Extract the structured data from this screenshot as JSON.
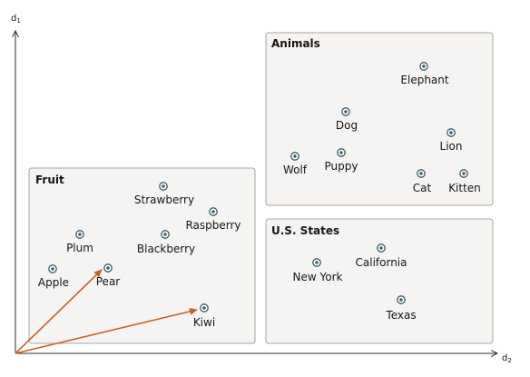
{
  "axes": {
    "y": {
      "name": "d",
      "subscript": "1"
    },
    "x": {
      "name": "d",
      "subscript": "2"
    }
  },
  "groups": [
    {
      "id": "fruit",
      "title": "Fruit",
      "items": [
        "Strawberry",
        "Raspberry",
        "Plum",
        "Blackberry",
        "Apple",
        "Pear",
        "Kiwi"
      ]
    },
    {
      "id": "animals",
      "title": "Animals",
      "items": [
        "Elephant",
        "Dog",
        "Lion",
        "Wolf",
        "Puppy",
        "Cat",
        "Kitten"
      ]
    },
    {
      "id": "states",
      "title": "U.S. States",
      "items": [
        "New York",
        "California",
        "Texas"
      ]
    }
  ],
  "vectors": [
    "Pear",
    "Kiwi"
  ],
  "colors": {
    "vector": "#c5622a",
    "point": "#3a5866",
    "box_fill": "#f5f4f2",
    "box_stroke": "#aaa49c"
  }
}
